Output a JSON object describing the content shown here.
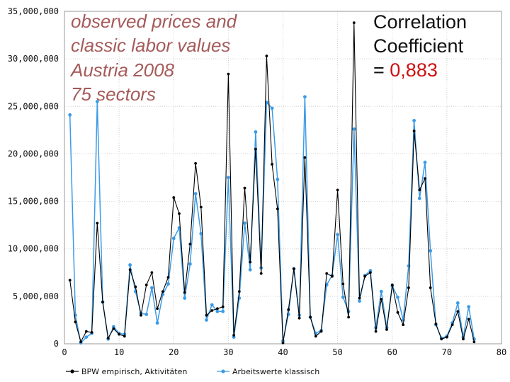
{
  "chart_data": {
    "type": "line",
    "annotation_lines": [
      "observed prices and",
      "classic labor values",
      "Austria 2008",
      "75 sectors"
    ],
    "correlation": {
      "label_line1": "Correlation",
      "label_line2": "Coefficient",
      "prefix": "= ",
      "value": "0,883"
    },
    "xlim": [
      0,
      80
    ],
    "ylim": [
      0,
      35000000
    ],
    "x_ticks": [
      0,
      10,
      20,
      30,
      40,
      50,
      60,
      70,
      80
    ],
    "y_ticks": [
      0,
      5000000,
      10000000,
      15000000,
      20000000,
      25000000,
      30000000,
      35000000
    ],
    "y_tick_labels": [
      "0",
      "5,000,000",
      "10,000,000",
      "15,000,000",
      "20,000,000",
      "25,000,000",
      "30,000,000",
      "35,000,000"
    ],
    "grid": true,
    "legend_position": "bottom",
    "x": [
      1,
      2,
      3,
      4,
      5,
      6,
      7,
      8,
      9,
      10,
      11,
      12,
      13,
      14,
      15,
      16,
      17,
      18,
      19,
      20,
      21,
      22,
      23,
      24,
      25,
      26,
      27,
      28,
      29,
      30,
      31,
      32,
      33,
      34,
      35,
      36,
      37,
      38,
      39,
      40,
      41,
      42,
      43,
      44,
      45,
      46,
      47,
      48,
      49,
      50,
      51,
      52,
      53,
      54,
      55,
      56,
      57,
      58,
      59,
      60,
      61,
      62,
      63,
      64,
      65,
      66,
      67,
      68,
      69,
      70,
      71,
      72,
      73,
      74,
      75
    ],
    "series": [
      {
        "name": "BPW empirisch, Aktivitäten",
        "color": "#000000",
        "values": [
          6700000,
          2300000,
          200000,
          1300000,
          1200000,
          12700000,
          4400000,
          600000,
          1600000,
          1000000,
          800000,
          7800000,
          6000000,
          3000000,
          6200000,
          7500000,
          3700000,
          5500000,
          7000000,
          15400000,
          13700000,
          5400000,
          10500000,
          19000000,
          14400000,
          3000000,
          3500000,
          3700000,
          3900000,
          28400000,
          900000,
          5500000,
          16400000,
          8600000,
          20500000,
          7400000,
          30300000,
          18900000,
          14200000,
          100000,
          3600000,
          7900000,
          2700000,
          19600000,
          2800000,
          800000,
          1300000,
          7400000,
          7100000,
          16200000,
          6300000,
          2800000,
          33800000,
          4800000,
          7100000,
          7500000,
          1300000,
          4700000,
          1500000,
          6200000,
          3300000,
          2000000,
          5900000,
          22400000,
          16200000,
          17400000,
          5900000,
          2100000,
          500000,
          700000,
          2000000,
          3400000,
          500000,
          2600000,
          200000
        ]
      },
      {
        "name": "Arbeitswerte klassisch",
        "color": "#3c9be6",
        "values": [
          24100000,
          3000000,
          100000,
          700000,
          1100000,
          25500000,
          4400000,
          500000,
          1800000,
          1100000,
          1000000,
          8300000,
          5500000,
          3200000,
          3100000,
          5900000,
          2200000,
          5200000,
          6300000,
          11100000,
          12200000,
          4800000,
          8400000,
          15800000,
          11600000,
          2500000,
          4100000,
          3400000,
          3400000,
          17500000,
          700000,
          4800000,
          12700000,
          7800000,
          22300000,
          8000000,
          25400000,
          24800000,
          17300000,
          300000,
          3100000,
          7900000,
          3000000,
          26000000,
          2800000,
          1100000,
          1400000,
          6200000,
          7200000,
          11500000,
          4900000,
          3400000,
          22600000,
          4500000,
          7200000,
          7700000,
          1700000,
          5500000,
          1700000,
          6100000,
          4900000,
          2500000,
          8200000,
          23500000,
          15300000,
          19100000,
          9800000,
          2000000,
          600000,
          800000,
          2200000,
          4300000,
          700000,
          3900000,
          500000
        ]
      }
    ]
  }
}
